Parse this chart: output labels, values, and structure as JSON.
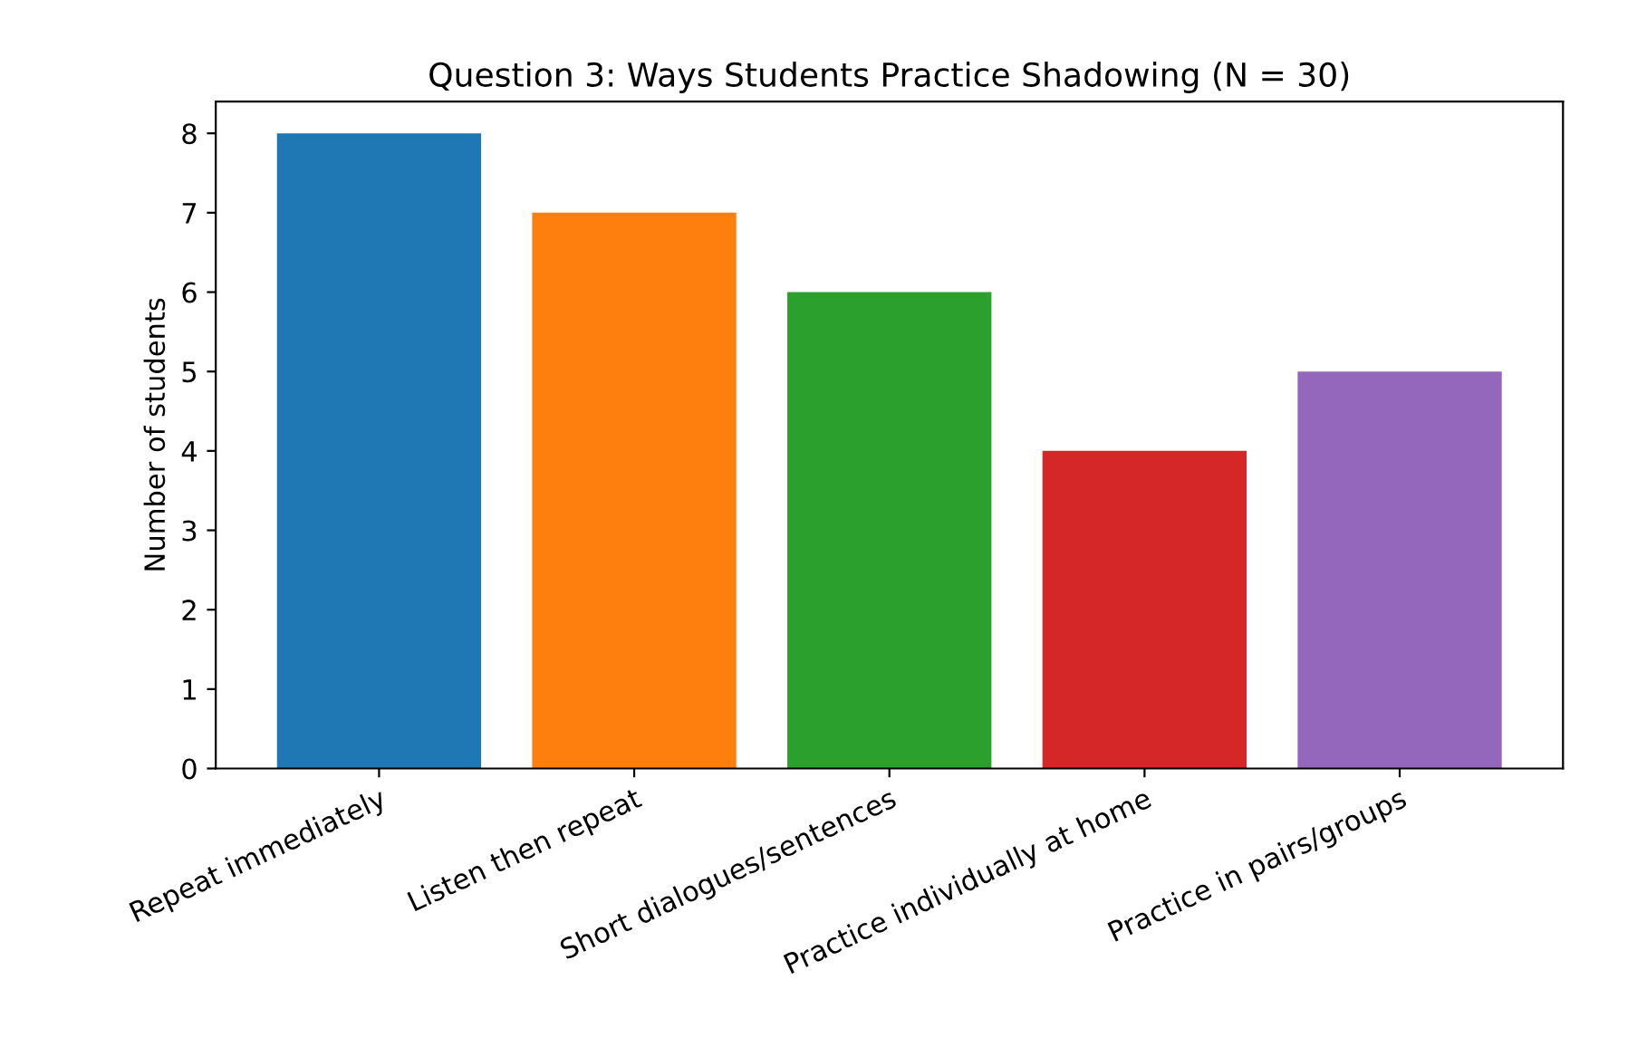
{
  "chart_data": {
    "type": "bar",
    "title": "Question 3: Ways Students Practice Shadowing (N = 30)",
    "ylabel": "Number of students",
    "categories": [
      "Repeat immediately",
      "Listen then repeat",
      "Short dialogues/sentences",
      "Practice individually at home",
      "Practice in pairs/groups"
    ],
    "values": [
      8,
      7,
      6,
      4,
      5
    ],
    "colors": [
      "#1f77b4",
      "#ff7f0e",
      "#2ca02c",
      "#d62728",
      "#9467bd"
    ],
    "ylim": [
      0,
      8.4
    ],
    "yticks": [
      0,
      1,
      2,
      3,
      4,
      5,
      6,
      7,
      8
    ],
    "grid": false
  }
}
